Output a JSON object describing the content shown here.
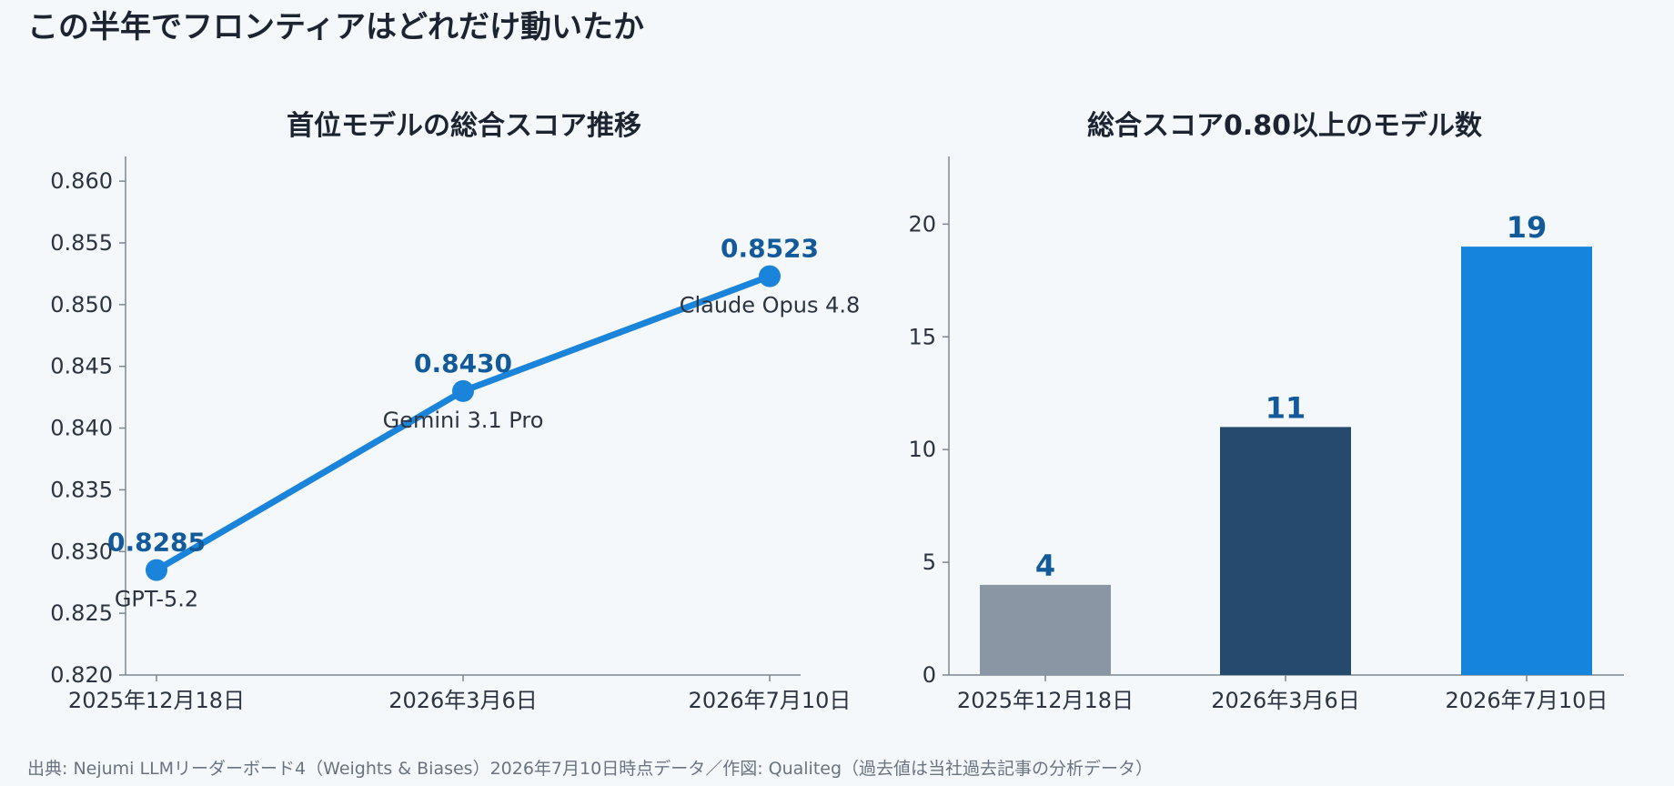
{
  "page": {
    "title": "この半年でフロンティアはどれだけ動いたか",
    "source": "出典: Nejumi LLMリーダーボード4（Weights & Biases）2026年7月10日時点データ／作図: Qualiteg（過去値は当社過去記事の分析データ）"
  },
  "colors": {
    "line": "#1a84da",
    "value_label": "#135a9a",
    "axis": "#7c8793",
    "bars": [
      "#8a96a3",
      "#264a6e",
      "#1584dc"
    ]
  },
  "chart_data": [
    {
      "type": "line",
      "title": "首位モデルの総合スコア推移",
      "categories": [
        "2025年12月18日",
        "2026年3月6日",
        "2026年7月10日"
      ],
      "values": [
        0.8285,
        0.843,
        0.8523
      ],
      "value_labels": [
        "0.8285",
        "0.8430",
        "0.8523"
      ],
      "point_labels": [
        "GPT-5.2",
        "Gemini 3.1 Pro",
        "Claude Opus 4.8"
      ],
      "ylim": [
        0.82,
        0.862
      ],
      "yticks": [
        "0.820",
        "0.825",
        "0.830",
        "0.835",
        "0.840",
        "0.845",
        "0.850",
        "0.855",
        "0.860"
      ],
      "grid": false
    },
    {
      "type": "bar",
      "title": "総合スコア0.80以上のモデル数",
      "categories": [
        "2025年12月18日",
        "2026年3月6日",
        "2026年7月10日"
      ],
      "values": [
        4,
        11,
        19
      ],
      "value_labels": [
        "4",
        "11",
        "19"
      ],
      "ylim": [
        0,
        23
      ],
      "yticks": [
        "0",
        "5",
        "10",
        "15",
        "20"
      ],
      "grid": false
    }
  ]
}
